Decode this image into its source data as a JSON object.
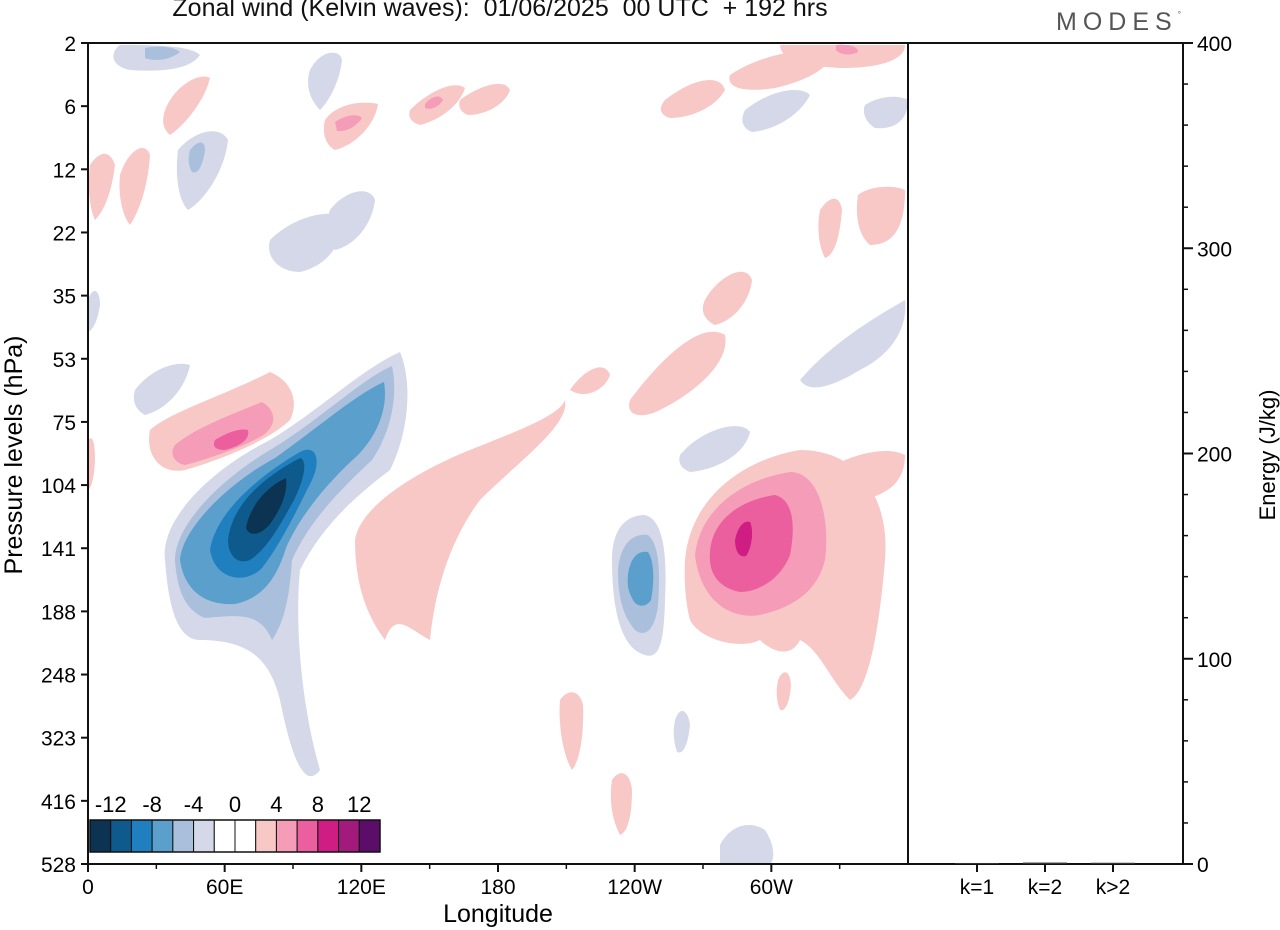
{
  "header": {
    "title": "Zonal wind (Kelvin waves):  01/06/2025  00 UTC  + 192 hrs",
    "brand": "MODES",
    "brand_mark": "°"
  },
  "chart_data": [
    {
      "type": "heatmap",
      "title": "Zonal wind (Kelvin waves):  01/06/2025  00 UTC  + 192 hrs",
      "xlabel": "Longitude",
      "ylabel": "Pressure levels (hPa)",
      "x_ticks": [
        "0",
        "60E",
        "120E",
        "180",
        "120W",
        "60W"
      ],
      "y_ticks": [
        "2",
        "6",
        "12",
        "22",
        "35",
        "53",
        "75",
        "104",
        "141",
        "188",
        "248",
        "323",
        "416",
        "528"
      ],
      "colorbar": {
        "labels": [
          "-12",
          "-8",
          "-4",
          "0",
          "4",
          "8",
          "12"
        ],
        "colors": [
          "#0d3352",
          "#0f5a8c",
          "#1f7fbf",
          "#5b9fcc",
          "#a9bfdc",
          "#d4d8e8",
          "#ffffff",
          "#ffffff",
          "#f8c8c6",
          "#f59cb8",
          "#ec5f9e",
          "#d01d84",
          "#a11a7c",
          "#5c0d6a"
        ]
      },
      "features": [
        {
          "sign": "negative",
          "center_lon": 70,
          "center_hpa": 120,
          "peak_ms": -12
        },
        {
          "sign": "positive",
          "center_lon": 55,
          "center_hpa": 75,
          "peak_ms": 8
        },
        {
          "sign": "negative",
          "center_lon": 240,
          "center_hpa": 141,
          "peak_ms": -6
        },
        {
          "sign": "positive",
          "center_lon": 290,
          "center_hpa": 130,
          "peak_ms": 10
        },
        {
          "sign": "positive",
          "center_lon": 160,
          "center_hpa": 150,
          "peak_ms": 4
        }
      ]
    },
    {
      "type": "bar",
      "ylabel": "Energy (J/kg)",
      "categories": [
        "k=1",
        "k=2",
        "k>2"
      ],
      "values": [
        0.5,
        0.7,
        0.6
      ],
      "ylim": [
        0,
        400
      ],
      "y_ticks": [
        "0",
        "100",
        "200",
        "300",
        "400"
      ]
    }
  ]
}
